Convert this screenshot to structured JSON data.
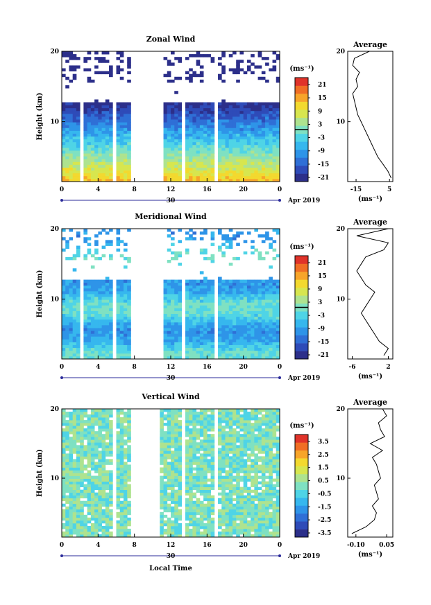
{
  "figure": {
    "xlabel": "Local Time",
    "date_label": "Apr 2019",
    "day_label": "30",
    "ylabel": "Height (km)",
    "unit_label": "(ms⁻¹)",
    "profile_title": "Average"
  },
  "colorscale": [
    "#2c2f8a",
    "#2e4bb8",
    "#2f6fd6",
    "#2e94e8",
    "#36b7ee",
    "#4fd4e6",
    "#7fe1c2",
    "#aee38f",
    "#d7e64f",
    "#f3d92f",
    "#f7a52a",
    "#f06e25",
    "#e0332a"
  ],
  "chart_data": [
    {
      "type": "heatmap",
      "title": "Zonal Wind",
      "xlabel": "Local Time",
      "ylabel": "Height (km)",
      "x_ticks": [
        "0",
        "4",
        "8",
        "12",
        "16",
        "20",
        "0"
      ],
      "xlim": [
        0,
        24
      ],
      "ylim": [
        1.5,
        20
      ],
      "y_ticks": [
        "20",
        "10"
      ],
      "colorbar": {
        "unit": "(ms⁻¹)",
        "ticks": [
          "21",
          "15",
          "9",
          "3",
          "-3",
          "-9",
          "-15",
          "-21"
        ],
        "range": [
          -24,
          24
        ]
      },
      "data_gaps_hours": [
        [
          2.0,
          2.2
        ],
        [
          5.8,
          6.0
        ],
        [
          7.6,
          11.2
        ],
        [
          13.2,
          13.4
        ],
        [
          14.3,
          14.5
        ],
        [
          16.8,
          17.0
        ],
        [
          19.8,
          20.0
        ]
      ],
      "profile": {
        "title": "Average",
        "xlabel": "(ms⁻¹)",
        "x_ticks": [
          "-15",
          "5"
        ],
        "xlim": [
          -20,
          7
        ],
        "heights": [
          2,
          3,
          4,
          5,
          6,
          7,
          8,
          9,
          10,
          11,
          12,
          13,
          14,
          15,
          16,
          17,
          18,
          19,
          20
        ],
        "values": [
          6,
          4,
          1,
          -2,
          -4,
          -6,
          -8,
          -10,
          -12,
          -14,
          -15,
          -16,
          -17,
          -14,
          -15,
          -13,
          -17,
          -16,
          -7
        ]
      }
    },
    {
      "type": "heatmap",
      "title": "Meridional Wind",
      "xlabel": "Local Time",
      "ylabel": "Height (km)",
      "x_ticks": [
        "0",
        "4",
        "8",
        "12",
        "16",
        "20",
        "0"
      ],
      "xlim": [
        0,
        24
      ],
      "ylim": [
        1.5,
        20
      ],
      "y_ticks": [
        "20",
        "10"
      ],
      "colorbar": {
        "unit": "(ms⁻¹)",
        "ticks": [
          "21",
          "15",
          "9",
          "3",
          "-3",
          "-9",
          "-15",
          "-21"
        ],
        "range": [
          -24,
          24
        ]
      },
      "data_gaps_hours": [
        [
          2.0,
          2.2
        ],
        [
          5.8,
          6.0
        ],
        [
          7.6,
          11.2
        ],
        [
          13.2,
          13.4
        ],
        [
          14.3,
          14.5
        ],
        [
          16.8,
          17.0
        ],
        [
          19.8,
          20.0
        ]
      ],
      "profile": {
        "title": "Average",
        "xlabel": "(ms⁻¹)",
        "x_ticks": [
          "-6",
          "2"
        ],
        "xlim": [
          -7,
          3
        ],
        "heights": [
          2,
          3,
          4,
          5,
          6,
          7,
          8,
          9,
          10,
          11,
          12,
          13,
          14,
          15,
          16,
          17,
          18,
          19,
          20
        ],
        "values": [
          1,
          2,
          0,
          -1,
          -2,
          -3,
          -4,
          -3,
          -2,
          -1,
          -3,
          -4,
          -5,
          -4,
          -3,
          1,
          2,
          -5,
          2
        ]
      }
    },
    {
      "type": "heatmap",
      "title": "Vertical Wind",
      "xlabel": "Local Time",
      "ylabel": "Height (km)",
      "x_ticks": [
        "0",
        "4",
        "8",
        "12",
        "16",
        "20",
        "0"
      ],
      "xlim": [
        0,
        24
      ],
      "ylim": [
        1.5,
        20
      ],
      "y_ticks": [
        "20",
        "10"
      ],
      "colorbar": {
        "unit": "(ms⁻¹)",
        "ticks": [
          "3.5",
          "2.5",
          "1.5",
          "0.5",
          "-0.5",
          "-1.5",
          "-2.5",
          "-3.5"
        ],
        "range": [
          -4,
          4
        ]
      },
      "data_gaps_hours": [
        [
          0.5,
          0.6
        ],
        [
          1.5,
          1.7
        ],
        [
          5.8,
          6.0
        ],
        [
          7.6,
          10.8
        ],
        [
          13.2,
          13.4
        ],
        [
          14.3,
          14.5
        ],
        [
          16.8,
          17.0
        ],
        [
          19.8,
          20.0
        ]
      ],
      "profile": {
        "title": "Average",
        "xlabel": "(ms⁻¹)",
        "x_ticks": [
          "-0.10",
          "0.05"
        ],
        "xlim": [
          -0.14,
          0.08
        ],
        "heights": [
          2,
          3,
          4,
          5,
          6,
          7,
          8,
          9,
          10,
          11,
          12,
          13,
          14,
          15,
          16,
          17,
          18,
          19,
          20
        ],
        "values": [
          -0.12,
          -0.05,
          -0.01,
          0.0,
          -0.02,
          0.01,
          0.0,
          -0.01,
          0.02,
          0.01,
          0.0,
          -0.02,
          0.03,
          -0.03,
          0.04,
          0.02,
          0.01,
          0.05,
          0.03
        ]
      }
    }
  ]
}
